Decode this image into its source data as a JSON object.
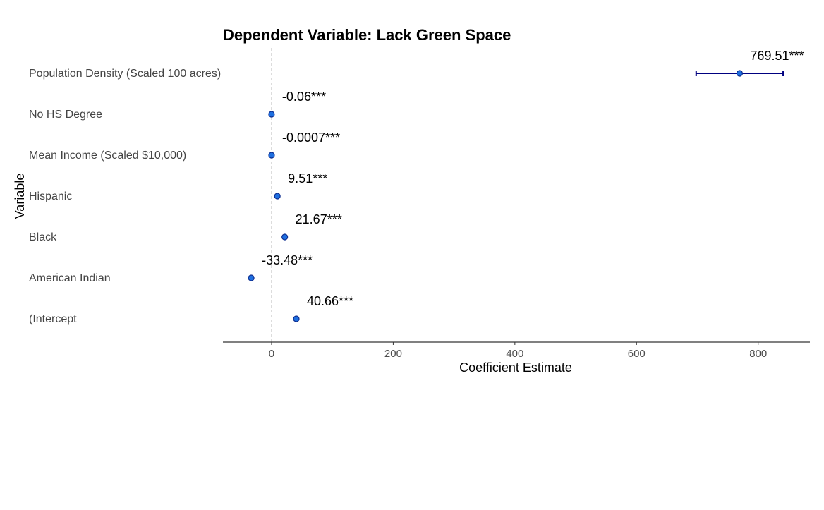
{
  "chart_data": {
    "type": "scatter",
    "title": "Dependent Variable: Lack Green Space",
    "xlabel": "Coefficient Estimate",
    "ylabel": "Variable",
    "xlim": [
      -80,
      885
    ],
    "xticks": [
      0,
      200,
      400,
      600,
      800
    ],
    "xtick_labels": [
      "0",
      "200",
      "400",
      "600",
      "800"
    ],
    "reference_line_x": 0,
    "grid": false,
    "point_color": "#1e6fe0",
    "point_edge_color": "#0d2d8f",
    "errorbar_color": "#000080",
    "reference_line_color": "#bdbdbd",
    "points": [
      {
        "variable": "Population Density (Scaled 100 acres)",
        "estimate": 769.51,
        "ci_low": 698,
        "ci_high": 841,
        "label": "769.51***"
      },
      {
        "variable": "No HS Degree",
        "estimate": -0.06,
        "ci_low": -0.06,
        "ci_high": -0.06,
        "label": "-0.06***"
      },
      {
        "variable": "Mean Income (Scaled $10,000)",
        "estimate": -0.0007,
        "ci_low": -0.0007,
        "ci_high": -0.0007,
        "label": "-0.0007***"
      },
      {
        "variable": "Hispanic",
        "estimate": 9.51,
        "ci_low": 9.51,
        "ci_high": 9.51,
        "label": "9.51***"
      },
      {
        "variable": "Black",
        "estimate": 21.67,
        "ci_low": 21.67,
        "ci_high": 21.67,
        "label": "21.67***"
      },
      {
        "variable": "American Indian",
        "estimate": -33.48,
        "ci_low": -33.48,
        "ci_high": -33.48,
        "label": "-33.48***"
      },
      {
        "variable": "(Intercept",
        "estimate": 40.66,
        "ci_low": 40.66,
        "ci_high": 40.66,
        "label": "40.66***"
      }
    ]
  }
}
